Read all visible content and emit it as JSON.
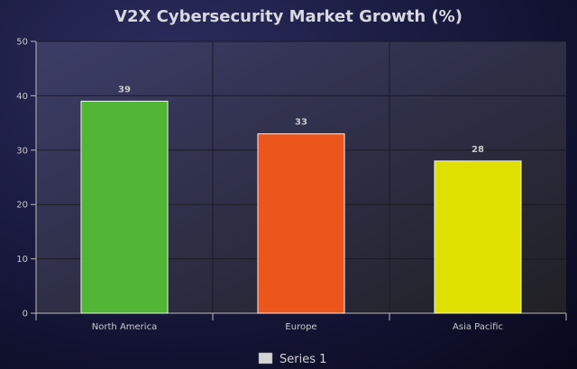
{
  "chart_data": {
    "type": "bar",
    "title": "V2X Cybersecurity Market Growth (%)",
    "xlabel": "",
    "ylabel": "",
    "categories": [
      "North America",
      "Europe",
      "Asia Pacific"
    ],
    "series": [
      {
        "name": "Series 1",
        "values": [
          39,
          33,
          28
        ]
      }
    ],
    "ylim": [
      0,
      50
    ],
    "yticks": [
      0,
      10,
      20,
      30,
      40,
      50
    ],
    "grid": true,
    "legend_position": "bottom",
    "colors": {
      "bars": [
        "#52b535",
        "#ec561c",
        "#dfe000"
      ],
      "legend_swatch": "#d4d4d4",
      "plot_bg_top": "#3c3d68",
      "plot_bg_bottom": "#202024"
    }
  }
}
